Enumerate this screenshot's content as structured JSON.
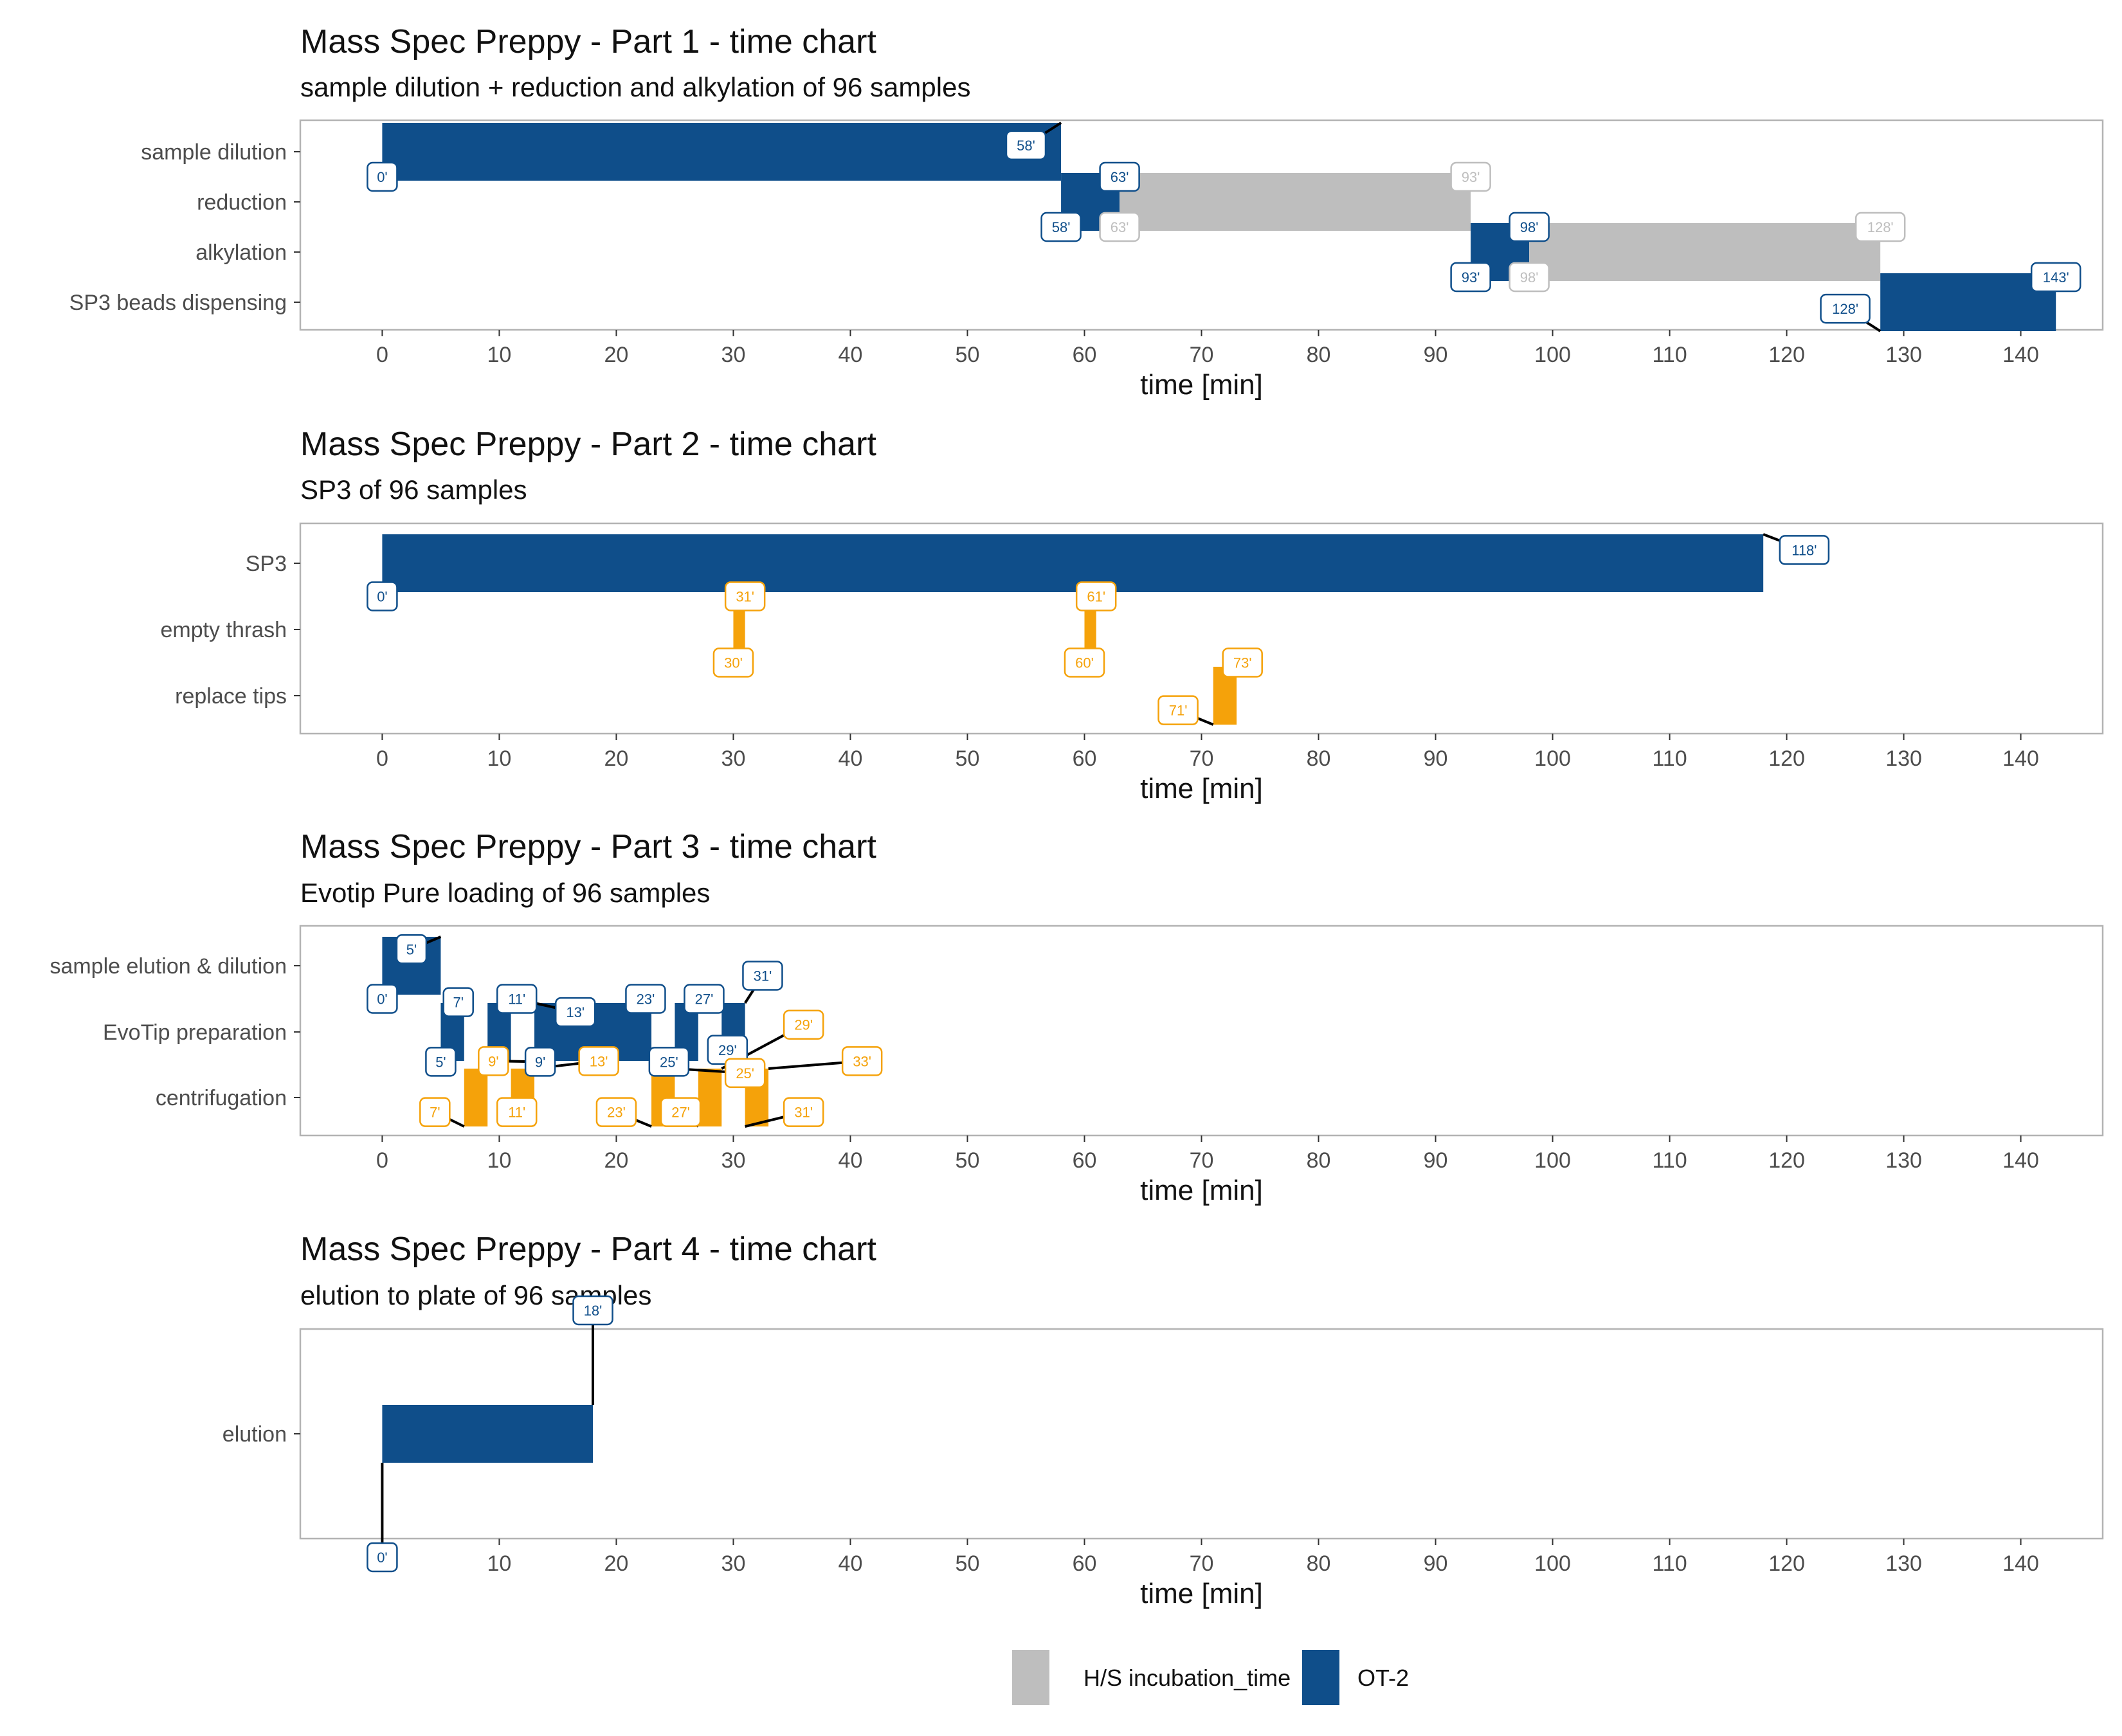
{
  "legend": {
    "entries": [
      {
        "label": "H/S incubation_time",
        "color": "#bebebe"
      },
      {
        "label": "OT-2",
        "color": "#0f4e8a"
      }
    ]
  },
  "colors": {
    "OT-2": "#0f4e8a",
    "H/S incubation_time": "#bebebe",
    "orange": "#f5a20a"
  },
  "chart_data": [
    {
      "type": "gantt",
      "title": "Mass Spec Preppy - Part 1 - time chart",
      "subtitle": "sample dilution + reduction and alkylation of 96 samples",
      "xlabel": "time [min]",
      "xlim": [
        -7,
        147
      ],
      "x_ticks": [
        0,
        10,
        20,
        30,
        40,
        50,
        60,
        70,
        80,
        90,
        100,
        110,
        120,
        130,
        140
      ],
      "grid": false,
      "categories": [
        "sample dilution",
        "reduction",
        "alkylation",
        "SP3 beads dispensing"
      ],
      "bars": [
        {
          "task": "sample dilution",
          "start": 0,
          "end": 58,
          "color": "OT-2"
        },
        {
          "task": "reduction",
          "start": 58,
          "end": 63,
          "color": "OT-2"
        },
        {
          "task": "reduction",
          "start": 63,
          "end": 93,
          "color": "H/S incubation_time"
        },
        {
          "task": "alkylation",
          "start": 93,
          "end": 98,
          "color": "OT-2"
        },
        {
          "task": "alkylation",
          "start": 98,
          "end": 128,
          "color": "H/S incubation_time"
        },
        {
          "task": "SP3 beads dispensing",
          "start": 128,
          "end": 143,
          "color": "OT-2"
        }
      ],
      "labels": [
        {
          "text": "0'",
          "x": 0,
          "task": "sample dilution",
          "pos": "low",
          "lx": 0,
          "ly": -0.5,
          "color": "OT-2"
        },
        {
          "text": "58'",
          "x": 58,
          "task": "sample dilution",
          "pos": "high",
          "lx": 55,
          "ly": 0.13,
          "color": "OT-2"
        },
        {
          "text": "58'",
          "x": 58,
          "task": "reduction",
          "pos": "low",
          "lx": 58,
          "ly": -0.5,
          "color": "OT-2"
        },
        {
          "text": "63'",
          "x": 63,
          "task": "reduction",
          "pos": "high",
          "lx": 63,
          "ly": 0.5,
          "color": "OT-2"
        },
        {
          "text": "63'",
          "x": 63,
          "task": "reduction",
          "pos": "low",
          "lx": 63,
          "ly": -0.5,
          "color": "H/S incubation_time"
        },
        {
          "text": "93'",
          "x": 93,
          "task": "reduction",
          "pos": "high",
          "lx": 93,
          "ly": 0.5,
          "color": "H/S incubation_time"
        },
        {
          "text": "93'",
          "x": 93,
          "task": "alkylation",
          "pos": "low",
          "lx": 93,
          "ly": -0.5,
          "color": "OT-2"
        },
        {
          "text": "98'",
          "x": 98,
          "task": "alkylation",
          "pos": "high",
          "lx": 98,
          "ly": 0.5,
          "color": "OT-2"
        },
        {
          "text": "98'",
          "x": 98,
          "task": "alkylation",
          "pos": "low",
          "lx": 98,
          "ly": -0.5,
          "color": "H/S incubation_time"
        },
        {
          "text": "128'",
          "x": 128,
          "task": "alkylation",
          "pos": "high",
          "lx": 128,
          "ly": 0.5,
          "color": "H/S incubation_time"
        },
        {
          "text": "128'",
          "x": 128,
          "task": "SP3 beads dispensing",
          "pos": "low",
          "lx": 125,
          "ly": -0.13,
          "color": "OT-2"
        },
        {
          "text": "143'",
          "x": 143,
          "task": "SP3 beads dispensing",
          "pos": "high",
          "lx": 143,
          "ly": 0.5,
          "color": "OT-2"
        }
      ]
    },
    {
      "type": "gantt",
      "title": "Mass Spec Preppy - Part 2 - time chart",
      "subtitle": "SP3 of 96 samples",
      "xlabel": "time [min]",
      "xlim": [
        -7,
        147
      ],
      "x_ticks": [
        0,
        10,
        20,
        30,
        40,
        50,
        60,
        70,
        80,
        90,
        100,
        110,
        120,
        130,
        140
      ],
      "grid": false,
      "categories": [
        "SP3",
        "empty thrash",
        "replace tips"
      ],
      "bars": [
        {
          "task": "SP3",
          "start": 0,
          "end": 118,
          "color": "OT-2"
        },
        {
          "task": "empty thrash",
          "start": 30,
          "end": 31,
          "color": "orange"
        },
        {
          "task": "empty thrash",
          "start": 60,
          "end": 61,
          "color": "orange"
        },
        {
          "task": "replace tips",
          "start": 71,
          "end": 73,
          "color": "orange"
        }
      ],
      "labels": [
        {
          "text": "0'",
          "x": 0,
          "task": "SP3",
          "pos": "low",
          "lx": 0,
          "ly": -0.5,
          "color": "OT-2"
        },
        {
          "text": "118'",
          "x": 118,
          "task": "SP3",
          "pos": "high",
          "lx": 121.5,
          "ly": 0.2,
          "color": "OT-2"
        },
        {
          "text": "31'",
          "x": 31,
          "task": "empty thrash",
          "pos": "high",
          "lx": 31,
          "ly": 0.5,
          "color": "orange"
        },
        {
          "text": "30'",
          "x": 30,
          "task": "empty thrash",
          "pos": "low",
          "lx": 30,
          "ly": -0.5,
          "color": "orange"
        },
        {
          "text": "61'",
          "x": 61,
          "task": "empty thrash",
          "pos": "high",
          "lx": 61,
          "ly": 0.5,
          "color": "orange"
        },
        {
          "text": "60'",
          "x": 60,
          "task": "empty thrash",
          "pos": "low",
          "lx": 60,
          "ly": -0.5,
          "color": "orange"
        },
        {
          "text": "73'",
          "x": 73,
          "task": "replace tips",
          "pos": "high",
          "lx": 73.5,
          "ly": 0.5,
          "color": "orange"
        },
        {
          "text": "71'",
          "x": 71,
          "task": "replace tips",
          "pos": "low",
          "lx": 68,
          "ly": -0.22,
          "color": "orange"
        }
      ]
    },
    {
      "type": "gantt",
      "title": "Mass Spec Preppy - Part 3 - time chart",
      "subtitle": "Evotip Pure loading of 96 samples",
      "xlabel": "time [min]",
      "xlim": [
        -7,
        147
      ],
      "x_ticks": [
        0,
        10,
        20,
        30,
        40,
        50,
        60,
        70,
        80,
        90,
        100,
        110,
        120,
        130,
        140
      ],
      "grid": false,
      "categories": [
        "sample elution & dilution",
        "EvoTip preparation",
        "centrifugation"
      ],
      "bars": [
        {
          "task": "sample elution & dilution",
          "start": 0,
          "end": 5,
          "color": "OT-2"
        },
        {
          "task": "EvoTip preparation",
          "start": 5,
          "end": 7,
          "color": "OT-2"
        },
        {
          "task": "EvoTip preparation",
          "start": 9,
          "end": 11,
          "color": "OT-2"
        },
        {
          "task": "EvoTip preparation",
          "start": 13,
          "end": 23,
          "color": "OT-2"
        },
        {
          "task": "EvoTip preparation",
          "start": 25,
          "end": 27,
          "color": "OT-2"
        },
        {
          "task": "EvoTip preparation",
          "start": 29,
          "end": 31,
          "color": "OT-2"
        },
        {
          "task": "centrifugation",
          "start": 7,
          "end": 9,
          "color": "orange"
        },
        {
          "task": "centrifugation",
          "start": 11,
          "end": 13,
          "color": "orange"
        },
        {
          "task": "centrifugation",
          "start": 23,
          "end": 25,
          "color": "orange"
        },
        {
          "task": "centrifugation",
          "start": 27,
          "end": 29,
          "color": "orange"
        },
        {
          "task": "centrifugation",
          "start": 31,
          "end": 33,
          "color": "orange"
        }
      ],
      "labels": [
        {
          "text": "5'",
          "x": 5,
          "task": "sample elution & dilution",
          "pos": "high",
          "lx": 2.5,
          "ly": 0.25,
          "color": "OT-2"
        },
        {
          "text": "0'",
          "x": 0,
          "task": "sample elution & dilution",
          "pos": "low",
          "lx": 0,
          "ly": -0.5,
          "color": "OT-2"
        },
        {
          "text": "7'",
          "x": 7,
          "task": "EvoTip preparation",
          "pos": "high",
          "lx": 6.5,
          "ly": 0.45,
          "color": "OT-2"
        },
        {
          "text": "5'",
          "x": 5,
          "task": "EvoTip preparation",
          "pos": "low",
          "lx": 5,
          "ly": -0.45,
          "color": "OT-2"
        },
        {
          "text": "11'",
          "x": 11,
          "task": "EvoTip preparation",
          "pos": "high",
          "lx": 11.5,
          "ly": 0.5,
          "color": "OT-2"
        },
        {
          "text": "9'",
          "x": 9,
          "task": "EvoTip preparation",
          "pos": "low",
          "lx": 13.5,
          "ly": -0.45,
          "color": "OT-2"
        },
        {
          "text": "13'",
          "x": 13,
          "task": "EvoTip preparation",
          "pos": "high",
          "lx": 16.5,
          "ly": 0.3,
          "color": "OT-2"
        },
        {
          "text": "23'",
          "x": 23,
          "task": "EvoTip preparation",
          "pos": "high",
          "lx": 22.5,
          "ly": 0.5,
          "color": "OT-2"
        },
        {
          "text": "25'",
          "x": 25,
          "task": "EvoTip preparation",
          "pos": "low",
          "lx": 24.5,
          "ly": -0.45,
          "color": "OT-2"
        },
        {
          "text": "27'",
          "x": 27,
          "task": "EvoTip preparation",
          "pos": "high",
          "lx": 27.5,
          "ly": 0.5,
          "color": "OT-2"
        },
        {
          "text": "29'",
          "x": 29,
          "task": "EvoTip preparation",
          "pos": "low",
          "lx": 29.5,
          "ly": -0.27,
          "color": "OT-2"
        },
        {
          "text": "31'",
          "x": 31,
          "task": "EvoTip preparation",
          "pos": "high",
          "lx": 32.5,
          "ly": 0.85,
          "color": "OT-2"
        },
        {
          "text": "9'",
          "x": 9,
          "task": "centrifugation",
          "pos": "high",
          "lx": 9.5,
          "ly": 0.55,
          "color": "orange"
        },
        {
          "text": "7'",
          "x": 7,
          "task": "centrifugation",
          "pos": "low",
          "lx": 4.5,
          "ly": -0.22,
          "color": "orange"
        },
        {
          "text": "11'",
          "x": 11,
          "task": "centrifugation",
          "pos": "low",
          "lx": 11.5,
          "ly": -0.22,
          "color": "orange"
        },
        {
          "text": "13'",
          "x": 13,
          "task": "centrifugation",
          "pos": "high",
          "lx": 18.5,
          "ly": 0.55,
          "color": "orange"
        },
        {
          "text": "23'",
          "x": 23,
          "task": "centrifugation",
          "pos": "low",
          "lx": 20,
          "ly": -0.22,
          "color": "orange"
        },
        {
          "text": "25'",
          "x": 25,
          "task": "centrifugation",
          "pos": "high",
          "lx": 31,
          "ly": 0.37,
          "color": "orange"
        },
        {
          "text": "27'",
          "x": 27,
          "task": "centrifugation",
          "pos": "low",
          "lx": 25.5,
          "ly": -0.22,
          "color": "orange"
        },
        {
          "text": "29'",
          "x": 29,
          "task": "centrifugation",
          "pos": "high",
          "lx": 36,
          "ly": 1.1,
          "color": "orange"
        },
        {
          "text": "31'",
          "x": 31,
          "task": "centrifugation",
          "pos": "low",
          "lx": 36,
          "ly": -0.22,
          "color": "orange"
        },
        {
          "text": "33'",
          "x": 33,
          "task": "centrifugation",
          "pos": "high",
          "lx": 41,
          "ly": 0.55,
          "color": "orange"
        }
      ]
    },
    {
      "type": "gantt",
      "title": "Mass Spec Preppy - Part 4 - time chart",
      "subtitle": "elution to plate of 96 samples",
      "xlabel": "time [min]",
      "xlim": [
        -7,
        147
      ],
      "x_ticks": [
        0,
        10,
        20,
        30,
        40,
        50,
        60,
        70,
        80,
        90,
        100,
        110,
        120,
        130,
        140
      ],
      "grid": false,
      "categories": [
        "elution"
      ],
      "bars": [
        {
          "task": "elution",
          "start": 0,
          "end": 18,
          "color": "OT-2"
        }
      ],
      "labels": [
        {
          "text": "0'",
          "x": 0,
          "task": "elution",
          "pos": "low",
          "lx": 0,
          "ly": -1.2,
          "color": "OT-2"
        },
        {
          "text": "18'",
          "x": 18,
          "task": "elution",
          "pos": "high",
          "lx": 18,
          "ly": 1.2,
          "color": "OT-2"
        }
      ]
    }
  ]
}
